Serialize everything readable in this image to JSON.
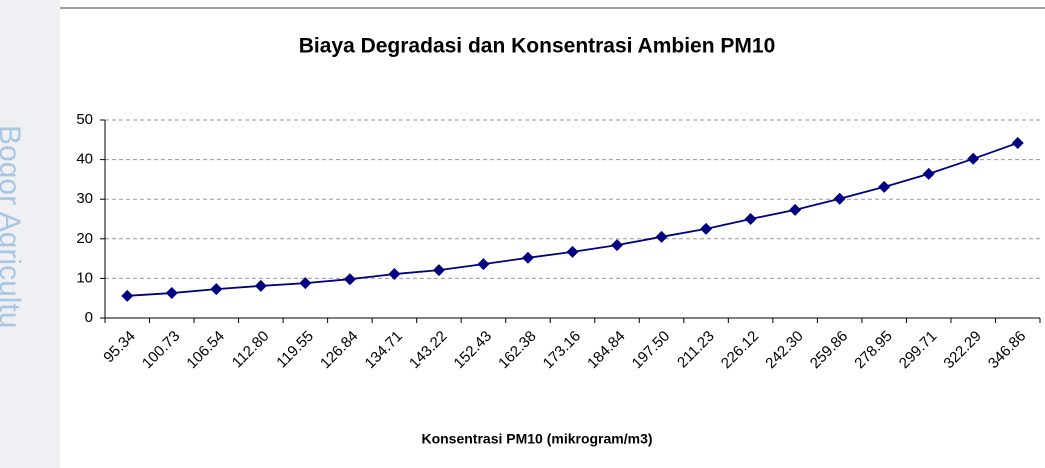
{
  "watermark": "Bogor Agricultu",
  "chart_data": {
    "type": "line",
    "title": "Biaya Degradasi dan Konsentrasi Ambien PM10",
    "x_label": "Konsentrasi PM10 (mikrogram/m3)",
    "categories": [
      "95.34",
      "100.73",
      "106.54",
      "112.80",
      "119.55",
      "126.84",
      "134.71",
      "143.22",
      "152.43",
      "162.38",
      "173.16",
      "184.84",
      "197.50",
      "211.23",
      "226.12",
      "242.30",
      "259.86",
      "278.95",
      "299.71",
      "322.29",
      "346.86"
    ],
    "values": [
      5.6,
      6.3,
      7.3,
      8.1,
      8.8,
      9.8,
      11.1,
      12.1,
      13.6,
      15.2,
      16.7,
      18.4,
      20.5,
      22.5,
      25.0,
      27.3,
      30.1,
      33.1,
      36.4,
      40.2,
      44.2
    ],
    "color": "#000080",
    "ylim": [
      0,
      50
    ],
    "yticks": [
      0,
      10,
      20,
      30,
      40,
      50
    ],
    "grid": true
  }
}
